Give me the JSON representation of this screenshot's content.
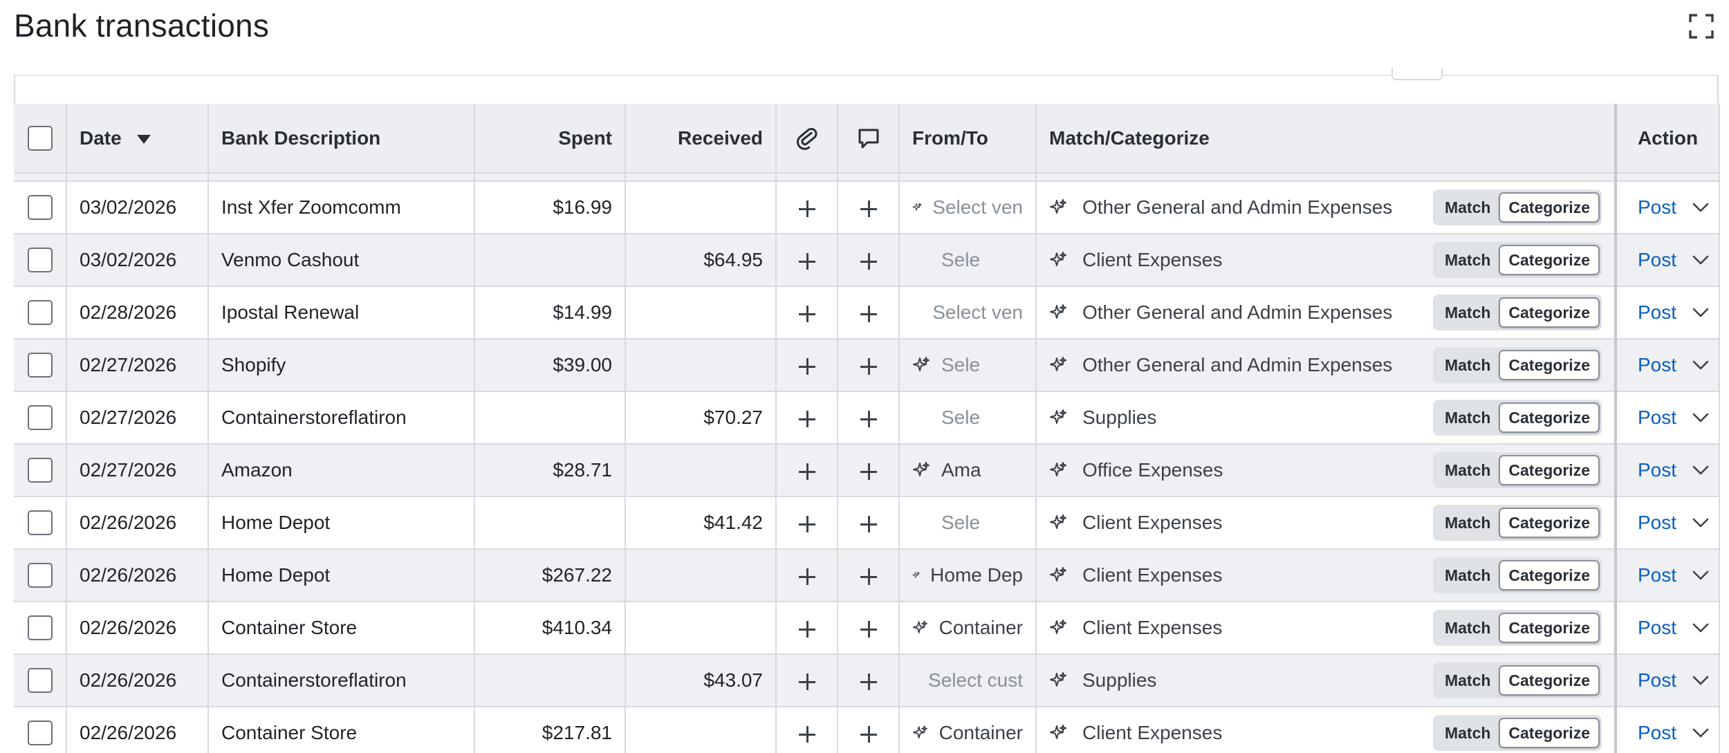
{
  "title": "Bank transactions",
  "headers": {
    "date": "Date",
    "description": "Bank Description",
    "spent": "Spent",
    "received": "Received",
    "from_to": "From/To",
    "match_categorize": "Match/Categorize",
    "action": "Action"
  },
  "labels": {
    "match": "Match",
    "categorize": "Categorize",
    "post": "Post"
  },
  "rows": [
    {
      "date": "03/02/2026",
      "description": "Inst Xfer Zoomcomm",
      "spent": "$16.99",
      "received": "",
      "from_to": "Select ven",
      "from_to_placeholder": true,
      "from_to_suggested": true,
      "category": "Other General and Admin Expenses"
    },
    {
      "date": "03/02/2026",
      "description": "Venmo Cashout",
      "spent": "",
      "received": "$64.95",
      "from_to": "Sele",
      "from_to_placeholder": true,
      "from_to_suggested": false,
      "category": "Client Expenses"
    },
    {
      "date": "02/28/2026",
      "description": "Ipostal Renewal",
      "spent": "$14.99",
      "received": "",
      "from_to": "Select ven",
      "from_to_placeholder": true,
      "from_to_suggested": false,
      "category": "Other General and Admin Expenses"
    },
    {
      "date": "02/27/2026",
      "description": "Shopify",
      "spent": "$39.00",
      "received": "",
      "from_to": "Sele",
      "from_to_placeholder": true,
      "from_to_suggested": true,
      "category": "Other General and Admin Expenses"
    },
    {
      "date": "02/27/2026",
      "description": "Containerstoreflatiron",
      "spent": "",
      "received": "$70.27",
      "from_to": "Sele",
      "from_to_placeholder": true,
      "from_to_suggested": false,
      "category": "Supplies"
    },
    {
      "date": "02/27/2026",
      "description": "Amazon",
      "spent": "$28.71",
      "received": "",
      "from_to": "Ama",
      "from_to_placeholder": false,
      "from_to_suggested": true,
      "category": "Office Expenses"
    },
    {
      "date": "02/26/2026",
      "description": "Home Depot",
      "spent": "",
      "received": "$41.42",
      "from_to": "Sele",
      "from_to_placeholder": true,
      "from_to_suggested": false,
      "category": "Client Expenses"
    },
    {
      "date": "02/26/2026",
      "description": "Home Depot",
      "spent": "$267.22",
      "received": "",
      "from_to": "Home Dep",
      "from_to_placeholder": false,
      "from_to_suggested": true,
      "category": "Client Expenses"
    },
    {
      "date": "02/26/2026",
      "description": "Container Store",
      "spent": "$410.34",
      "received": "",
      "from_to": "Container",
      "from_to_placeholder": false,
      "from_to_suggested": true,
      "category": "Client Expenses"
    },
    {
      "date": "02/26/2026",
      "description": "Containerstoreflatiron",
      "spent": "",
      "received": "$43.07",
      "from_to": "Select cust",
      "from_to_placeholder": true,
      "from_to_suggested": false,
      "category": "Supplies"
    },
    {
      "date": "02/26/2026",
      "description": "Container Store",
      "spent": "$217.81",
      "received": "",
      "from_to": "Container",
      "from_to_placeholder": false,
      "from_to_suggested": true,
      "category": "Client Expenses"
    }
  ],
  "colors": {
    "link": "#0a5fc2",
    "header_bg": "#eceef1",
    "stripe": "#eef0f3"
  },
  "icons": {
    "expand": "expand-icon",
    "attachment": "paperclip-icon",
    "comment": "comment-icon",
    "add": "plus-icon",
    "suggested": "sparkle-icon",
    "more": "chevron-down-icon",
    "sort": "sort-desc-icon"
  }
}
